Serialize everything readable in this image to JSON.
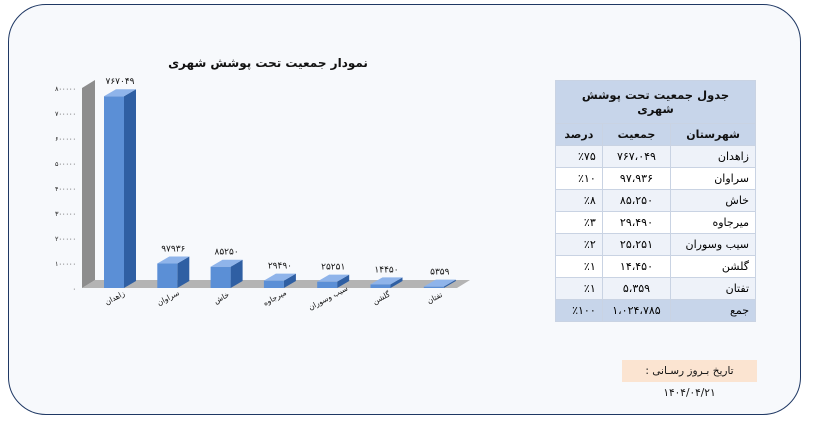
{
  "chart_data": {
    "type": "bar",
    "title": "نمودار جمعیت تحت پوشش شهری",
    "categories": [
      "زاهدان",
      "سراوان",
      "خاش",
      "میرجاوه",
      "سیب وسوران",
      "گلشن",
      "تفتان"
    ],
    "values": [
      767049,
      97936,
      85250,
      29490,
      25251,
      14450,
      5359
    ],
    "data_labels": [
      "۷۶۷۰۴۹",
      "۹۷۹۳۶",
      "۸۵۲۵۰",
      "۲۹۴۹۰",
      "۲۵۲۵۱",
      "۱۴۴۵۰",
      "۵۳۵۹"
    ],
    "y_ticks": [
      "۰",
      "۱۰۰۰۰۰",
      "۲۰۰۰۰۰",
      "۳۰۰۰۰۰",
      "۴۰۰۰۰۰",
      "۵۰۰۰۰۰",
      "۶۰۰۰۰۰",
      "۷۰۰۰۰۰",
      "۸۰۰۰۰۰"
    ],
    "ylim": [
      0,
      800000
    ],
    "bar_color": "#5b8fd6",
    "grid": false
  },
  "table": {
    "title": "جدول جمعیت تحت پوشش شهری",
    "headers": {
      "city": "شهرستان",
      "population": "جمعیت",
      "percent": "درصد"
    },
    "rows": [
      {
        "city": "زاهدان",
        "population": "۷۶۷،۰۴۹",
        "percent": "٪۷۵"
      },
      {
        "city": "سراوان",
        "population": "۹۷،۹۳۶",
        "percent": "٪۱۰"
      },
      {
        "city": "خاش",
        "population": "۸۵،۲۵۰",
        "percent": "٪۸"
      },
      {
        "city": "میرجاوه",
        "population": "۲۹،۴۹۰",
        "percent": "٪۳"
      },
      {
        "city": "سیب وسوران",
        "population": "۲۵،۲۵۱",
        "percent": "٪۲"
      },
      {
        "city": "گلشن",
        "population": "۱۴،۴۵۰",
        "percent": "٪۱"
      },
      {
        "city": "تفتان",
        "population": "۵،۳۵۹",
        "percent": "٪۱"
      }
    ],
    "total": {
      "label": "جمع",
      "population": "۱،۰۲۴،۷۸۵",
      "percent": "٪۱۰۰"
    }
  },
  "footer": {
    "update_date": "تاریخ بـروز رسـانی : ۱۴۰۴/۰۴/۲۱"
  },
  "colors": {
    "frame_border": "#1f3864",
    "table_header": "#c7d5ea",
    "date_box": "#fbe4d1"
  }
}
